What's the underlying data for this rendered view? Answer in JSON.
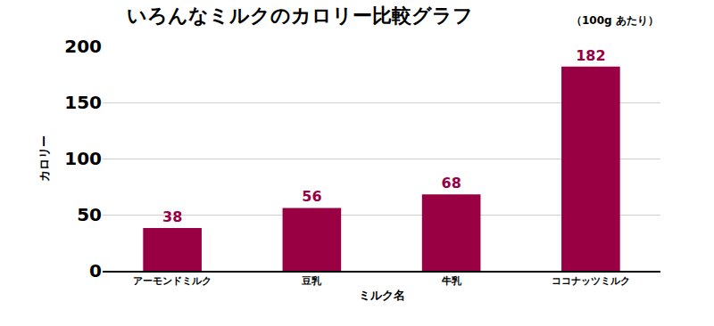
{
  "chart_data": {
    "type": "bar",
    "title": "いろんなミルクのカロリー比較グラフ",
    "subtitle": "（100g あたり）",
    "x_label": "ミルク名",
    "y_label": "カロリー",
    "categories": [
      "アーモンドミルク",
      "豆乳",
      "牛乳",
      "ココナッツミルク"
    ],
    "values": [
      38,
      56,
      68,
      182
    ],
    "color": "#990044",
    "ylim": [
      0,
      200
    ],
    "yticks": [
      0,
      50,
      100,
      150,
      200
    ],
    "grid": true,
    "data_labels": true
  }
}
